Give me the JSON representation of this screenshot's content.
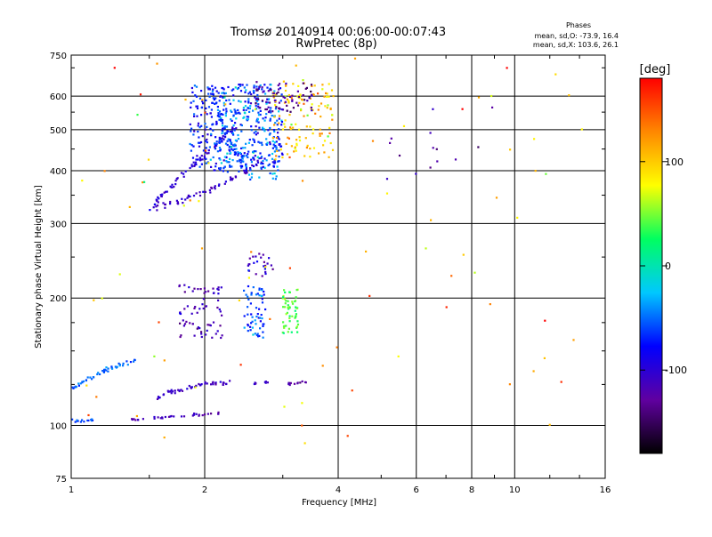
{
  "chart_data": {
    "type": "scatter",
    "title": "Tromsø 20140914 00:06:00-00:07:43",
    "subtitle": "RwPretec (8p)",
    "xlabel": "Frequency [MHz]",
    "ylabel": "Stationary phase Virtual Height [km]",
    "x_scale": "log",
    "y_scale": "log",
    "xlim": [
      1,
      16
    ],
    "ylim": [
      75,
      750
    ],
    "x_ticks": [
      1,
      2,
      4,
      6,
      8,
      10,
      16
    ],
    "x_tick_labels": [
      "1",
      "2",
      "4",
      "6",
      "8",
      "10",
      "16"
    ],
    "x_grid": [
      2,
      4,
      6,
      8,
      10
    ],
    "y_ticks": [
      75,
      100,
      200,
      300,
      400,
      500,
      600,
      750
    ],
    "y_tick_labels": [
      "75",
      "100",
      "200",
      "300",
      "400",
      "500",
      "600",
      "750"
    ],
    "y_grid": [
      100,
      200,
      300,
      400,
      500,
      600
    ],
    "grid": true,
    "legend": {
      "title": "Phases",
      "line1": "mean, sd,O: -73.9, 16.4",
      "line2": "mean, sd,X: 103.6, 26.1",
      "placement": "top-right"
    },
    "colorbar": {
      "label": "[deg]",
      "min": -180,
      "max": 180,
      "ticks": [
        100,
        0,
        -100
      ],
      "tick_labels": [
        "100",
        "0",
        "-100"
      ],
      "stops": [
        "#000000",
        "#6000a0",
        "#0000ff",
        "#00c8ff",
        "#00ff60",
        "#ffff00",
        "#ff8800",
        "#ff0000"
      ]
    },
    "series": [
      {
        "name": "",
        "mode": "line",
        "values": [
          [
            1.52,
            325
          ],
          [
            1.65,
            332
          ],
          [
            1.8,
            342
          ],
          [
            1.95,
            353
          ],
          [
            2.1,
            365
          ],
          [
            2.25,
            378
          ],
          [
            2.4,
            392
          ],
          [
            2.55,
            408
          ],
          [
            2.7,
            425
          ]
        ],
        "spread": 4,
        "density": 7,
        "phase": -110
      },
      {
        "name": "",
        "mode": "line",
        "values": [
          [
            1.5,
            318
          ],
          [
            1.58,
            345
          ],
          [
            1.7,
            372
          ],
          [
            1.82,
            398
          ],
          [
            1.95,
            425
          ],
          [
            2.1,
            455
          ],
          [
            2.25,
            488
          ],
          [
            2.42,
            520
          ]
        ],
        "spread": 4,
        "density": 6,
        "phase": -100
      },
      {
        "name": "",
        "mode": "line",
        "values": [
          [
            2.05,
            640
          ],
          [
            2.1,
            590
          ],
          [
            2.15,
            545
          ],
          [
            2.2,
            505
          ],
          [
            2.28,
            470
          ],
          [
            2.36,
            440
          ],
          [
            2.44,
            415
          ]
        ],
        "spread": 4,
        "density": 6,
        "phase": -70
      },
      {
        "name": "",
        "mode": "cloud",
        "values": [
          [
            1.85,
            400
          ],
          [
            3.0,
            640
          ]
        ],
        "count": 330,
        "phase": -70,
        "phase_sd": 26
      },
      {
        "name": "",
        "mode": "cloud",
        "values": [
          [
            2.15,
            380
          ],
          [
            2.95,
            640
          ]
        ],
        "count": 160,
        "phase": -40,
        "phase_sd": 25
      },
      {
        "name": "",
        "mode": "cloud",
        "values": [
          [
            2.85,
            420
          ],
          [
            3.9,
            650
          ]
        ],
        "count": 130,
        "phase": 100,
        "phase_sd": 30
      },
      {
        "name": "",
        "mode": "cloud",
        "values": [
          [
            2.6,
            550
          ],
          [
            3.5,
            650
          ]
        ],
        "count": 70,
        "phase": -130,
        "phase_sd": 18
      },
      {
        "name": "",
        "mode": "line",
        "values": [
          [
            1.35,
            103
          ],
          [
            1.5,
            104
          ],
          [
            1.65,
            104.5
          ],
          [
            1.8,
            105.5
          ],
          [
            1.95,
            106
          ],
          [
            2.1,
            107
          ],
          [
            2.2,
            107.5
          ]
        ],
        "spread": 2,
        "density": 9,
        "phase": -115
      },
      {
        "name": "",
        "mode": "line",
        "values": [
          [
            1.0,
            103
          ],
          [
            1.06,
            102.5
          ],
          [
            1.12,
            103.5
          ]
        ],
        "spread": 2,
        "density": 5,
        "phase": -60
      },
      {
        "name": "",
        "mode": "line",
        "values": [
          [
            1.0,
            122
          ],
          [
            1.08,
            128
          ],
          [
            1.16,
            133
          ],
          [
            1.26,
            138
          ],
          [
            1.4,
            143
          ]
        ],
        "spread": 3,
        "density": 5,
        "phase": -50
      },
      {
        "name": "",
        "mode": "line",
        "values": [
          [
            1.55,
            116
          ],
          [
            1.7,
            120
          ],
          [
            1.85,
            123
          ],
          [
            2.0,
            125
          ],
          [
            2.3,
            126
          ]
        ],
        "spread": 3,
        "density": 5,
        "phase": -110
      },
      {
        "name": "",
        "mode": "line",
        "values": [
          [
            2.6,
            126
          ],
          [
            2.8,
            127
          ]
        ],
        "spread": 2,
        "density": 6,
        "phase": -105
      },
      {
        "name": "",
        "mode": "line",
        "values": [
          [
            3.05,
            126
          ],
          [
            3.4,
            126.5
          ]
        ],
        "spread": 2,
        "density": 6,
        "phase": -125
      },
      {
        "name": "",
        "mode": "cloud",
        "values": [
          [
            1.75,
            160
          ],
          [
            2.2,
            215
          ]
        ],
        "count": 70,
        "phase": -115,
        "phase_sd": 20
      },
      {
        "name": "",
        "mode": "cloud",
        "values": [
          [
            2.45,
            160
          ],
          [
            2.75,
            215
          ]
        ],
        "count": 60,
        "phase": -60,
        "phase_sd": 25
      },
      {
        "name": "",
        "mode": "cloud",
        "values": [
          [
            3.0,
            165
          ],
          [
            3.25,
            210
          ]
        ],
        "count": 55,
        "phase": 40,
        "phase_sd": 18
      },
      {
        "name": "",
        "mode": "cloud",
        "values": [
          [
            2.5,
            225
          ],
          [
            2.85,
            255
          ]
        ],
        "count": 25,
        "phase": -110,
        "phase_sd": 25
      },
      {
        "name": "",
        "mode": "cloud",
        "values": [
          [
            1.05,
            90
          ],
          [
            15,
            740
          ]
        ],
        "count": 85,
        "phase": 110,
        "phase_sd": 50
      },
      {
        "name": "",
        "mode": "cloud",
        "values": [
          [
            5.0,
            380
          ],
          [
            9.0,
            570
          ]
        ],
        "count": 14,
        "phase": -120,
        "phase_sd": 20
      }
    ]
  }
}
